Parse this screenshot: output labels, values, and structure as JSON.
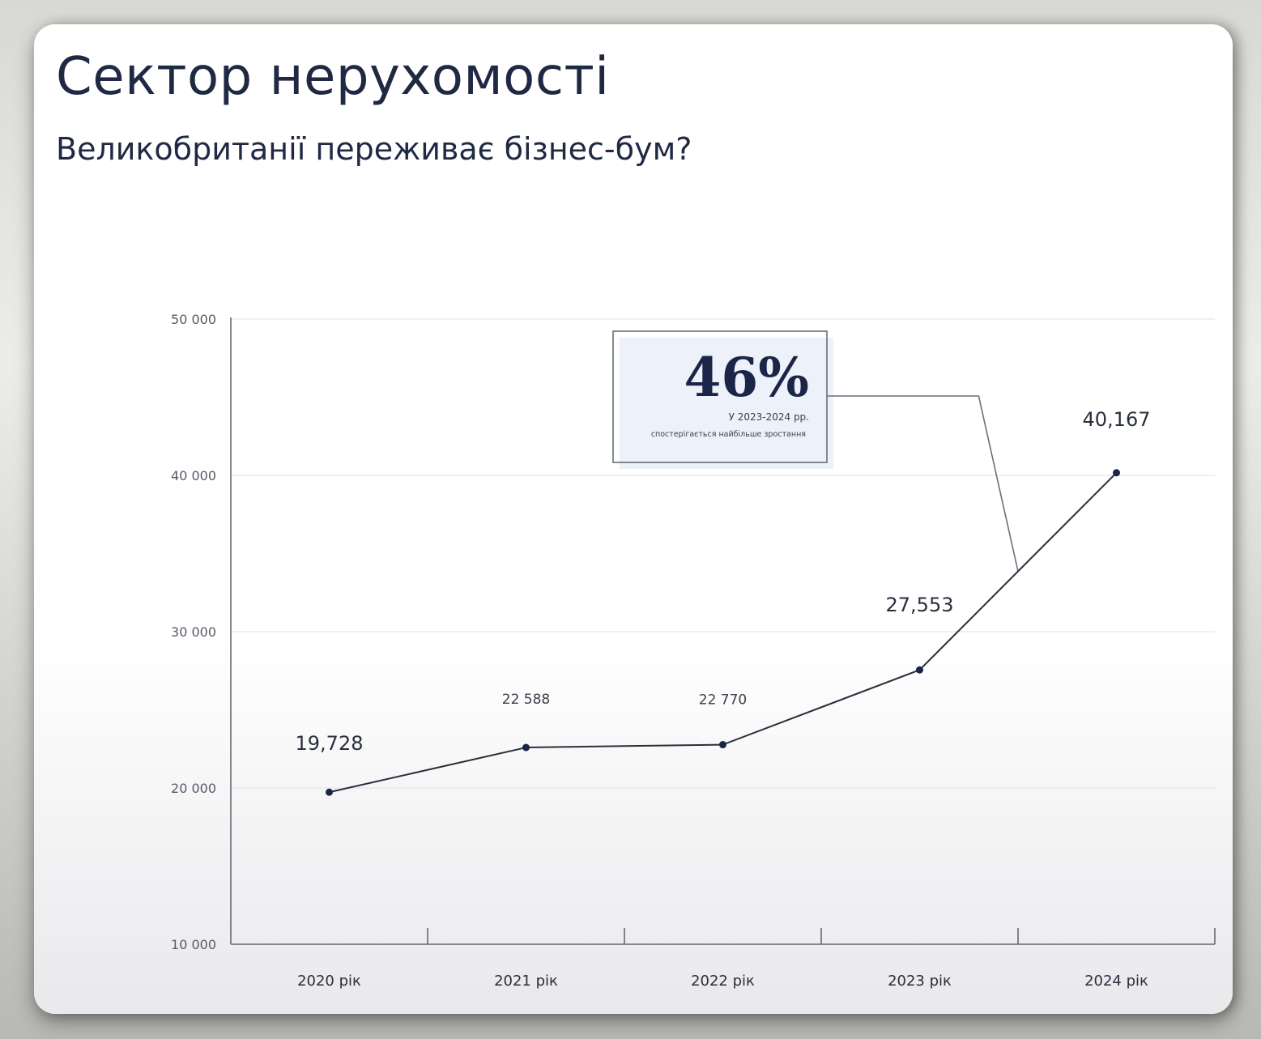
{
  "header": {
    "title": "Сектор нерухомості",
    "subtitle": "Великобританії переживає бізнес-бум?"
  },
  "callout": {
    "percent": "46%",
    "line1": "У 2023-2024 рр.",
    "line2": "спостерігається найбільше зростання"
  },
  "chart_data": {
    "type": "line",
    "title": "",
    "xlabel": "",
    "ylabel": "",
    "categories": [
      "2020 рік",
      "2021 рік",
      "2022 рік",
      "2023 рік",
      "2024 рік"
    ],
    "series": [
      {
        "values": [
          19728,
          22588,
          22770,
          27553,
          40167
        ],
        "labels": [
          "19,728",
          "22 588",
          "22 770",
          "27,553",
          "40,167"
        ]
      }
    ],
    "yticks": [
      10000,
      20000,
      30000,
      40000,
      50000
    ],
    "ytick_labels": [
      "10 000",
      "20 000",
      "30 000",
      "40 000",
      "50 000"
    ],
    "ylim": [
      10000,
      50000
    ],
    "grid": true,
    "legend": "none",
    "annotation_point": 2024,
    "colors": {
      "line": "#2b2f3d",
      "marker": "#1b2548",
      "grid": "#e6e6ea",
      "axis": "#666a74"
    }
  }
}
